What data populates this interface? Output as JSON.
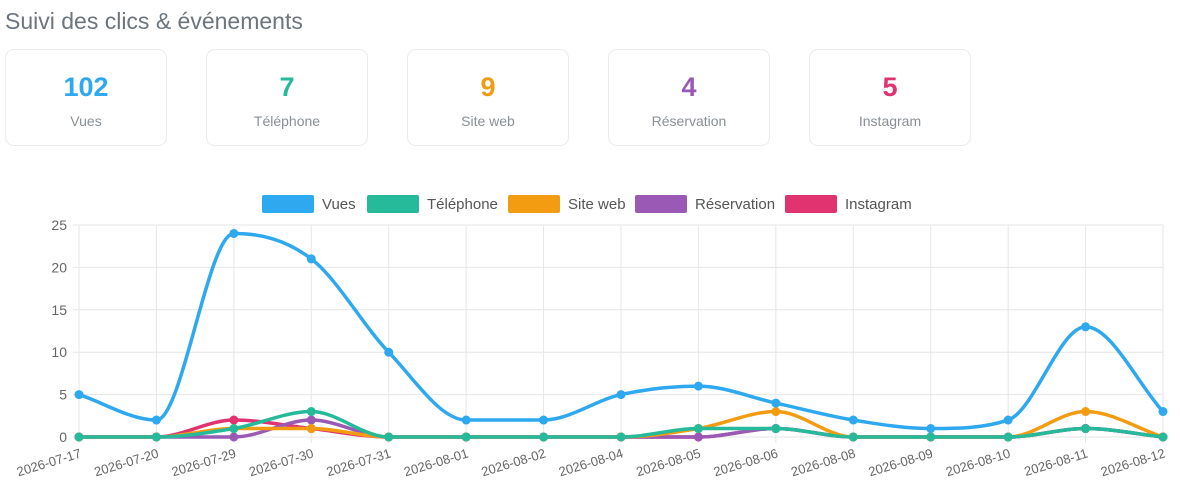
{
  "header": {
    "title": "Suivi des clics & événements"
  },
  "stats": [
    {
      "value": "102",
      "label": "Vues",
      "color": "#2ea8ef"
    },
    {
      "value": "7",
      "label": "Téléphone",
      "color": "#26b99a"
    },
    {
      "value": "9",
      "label": "Site web",
      "color": "#f39c12"
    },
    {
      "value": "4",
      "label": "Réservation",
      "color": "#9b59b6"
    },
    {
      "value": "5",
      "label": "Instagram",
      "color": "#e0336f"
    }
  ],
  "chart_data": {
    "type": "line",
    "categories": [
      "2026-07-17",
      "2026-07-20",
      "2026-07-29",
      "2026-07-30",
      "2026-07-31",
      "2026-08-01",
      "2026-08-02",
      "2026-08-04",
      "2026-08-05",
      "2026-08-06",
      "2026-08-08",
      "2026-08-09",
      "2026-08-10",
      "2026-08-11",
      "2026-08-12"
    ],
    "ylim": [
      0,
      25
    ],
    "yticks": [
      0,
      5,
      10,
      15,
      20,
      25
    ],
    "grid": true,
    "legend": "top",
    "series": [
      {
        "name": "Vues",
        "color": "#2ea8ef",
        "values": [
          5,
          2,
          24,
          21,
          10,
          2,
          2,
          5,
          6,
          4,
          2,
          1,
          2,
          13,
          3
        ]
      },
      {
        "name": "Téléphone",
        "color": "#26b99a",
        "values": [
          0,
          0,
          1,
          3,
          0,
          0,
          0,
          0,
          1,
          1,
          0,
          0,
          0,
          1,
          0
        ]
      },
      {
        "name": "Site web",
        "color": "#f39c12",
        "values": [
          0,
          0,
          1,
          1,
          0,
          0,
          0,
          0,
          1,
          3,
          0,
          0,
          0,
          3,
          0
        ]
      },
      {
        "name": "Réservation",
        "color": "#9b59b6",
        "values": [
          0,
          0,
          0,
          2,
          0,
          0,
          0,
          0,
          0,
          1,
          0,
          0,
          0,
          1,
          0
        ]
      },
      {
        "name": "Instagram",
        "color": "#e0336f",
        "values": [
          0,
          0,
          2,
          1,
          0,
          0,
          0,
          0,
          0,
          1,
          0,
          0,
          0,
          1,
          0
        ]
      }
    ]
  }
}
